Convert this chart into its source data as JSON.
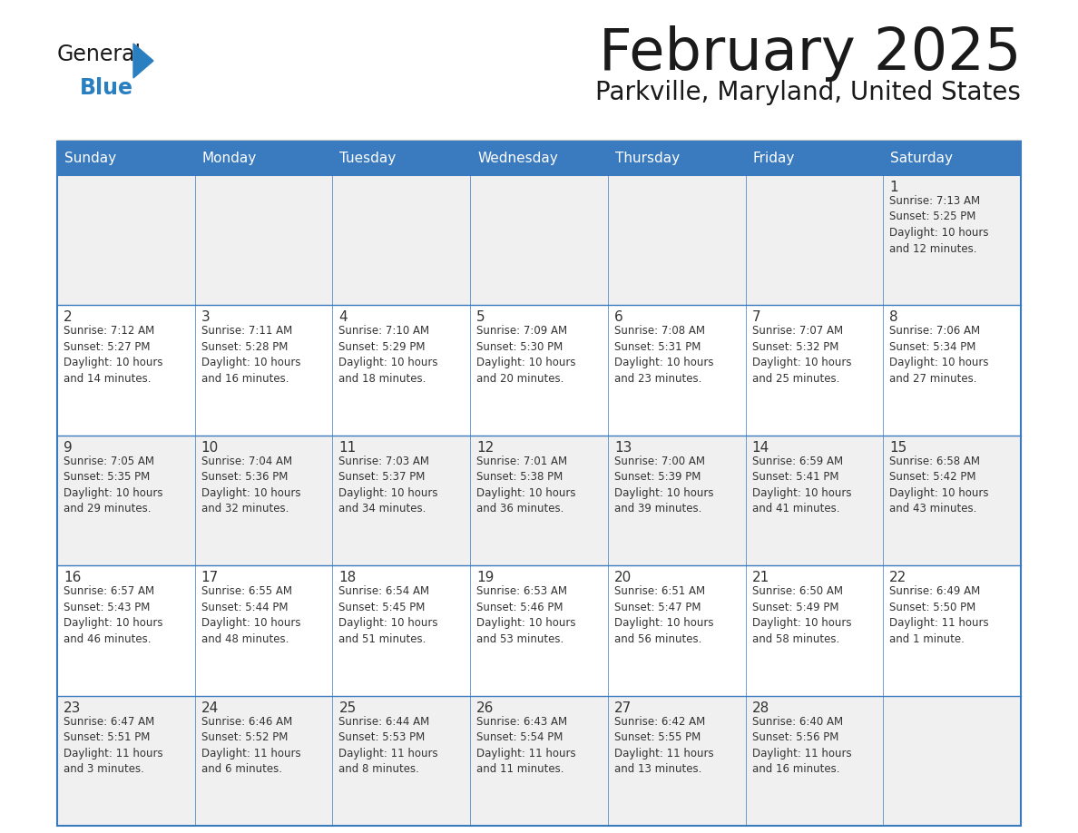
{
  "title": "February 2025",
  "subtitle": "Parkville, Maryland, United States",
  "header_bg_color": "#3a7abf",
  "header_text_color": "#ffffff",
  "cell_bg_color": "#ffffff",
  "cell_alt_bg_color": "#f0f0f0",
  "border_color": "#3a7abf",
  "title_color": "#1a1a1a",
  "subtitle_color": "#1a1a1a",
  "day_text_color": "#333333",
  "day_headers": [
    "Sunday",
    "Monday",
    "Tuesday",
    "Wednesday",
    "Thursday",
    "Friday",
    "Saturday"
  ],
  "weeks": [
    [
      {
        "day": "",
        "text": ""
      },
      {
        "day": "",
        "text": ""
      },
      {
        "day": "",
        "text": ""
      },
      {
        "day": "",
        "text": ""
      },
      {
        "day": "",
        "text": ""
      },
      {
        "day": "",
        "text": ""
      },
      {
        "day": "1",
        "text": "Sunrise: 7:13 AM\nSunset: 5:25 PM\nDaylight: 10 hours\nand 12 minutes."
      }
    ],
    [
      {
        "day": "2",
        "text": "Sunrise: 7:12 AM\nSunset: 5:27 PM\nDaylight: 10 hours\nand 14 minutes."
      },
      {
        "day": "3",
        "text": "Sunrise: 7:11 AM\nSunset: 5:28 PM\nDaylight: 10 hours\nand 16 minutes."
      },
      {
        "day": "4",
        "text": "Sunrise: 7:10 AM\nSunset: 5:29 PM\nDaylight: 10 hours\nand 18 minutes."
      },
      {
        "day": "5",
        "text": "Sunrise: 7:09 AM\nSunset: 5:30 PM\nDaylight: 10 hours\nand 20 minutes."
      },
      {
        "day": "6",
        "text": "Sunrise: 7:08 AM\nSunset: 5:31 PM\nDaylight: 10 hours\nand 23 minutes."
      },
      {
        "day": "7",
        "text": "Sunrise: 7:07 AM\nSunset: 5:32 PM\nDaylight: 10 hours\nand 25 minutes."
      },
      {
        "day": "8",
        "text": "Sunrise: 7:06 AM\nSunset: 5:34 PM\nDaylight: 10 hours\nand 27 minutes."
      }
    ],
    [
      {
        "day": "9",
        "text": "Sunrise: 7:05 AM\nSunset: 5:35 PM\nDaylight: 10 hours\nand 29 minutes."
      },
      {
        "day": "10",
        "text": "Sunrise: 7:04 AM\nSunset: 5:36 PM\nDaylight: 10 hours\nand 32 minutes."
      },
      {
        "day": "11",
        "text": "Sunrise: 7:03 AM\nSunset: 5:37 PM\nDaylight: 10 hours\nand 34 minutes."
      },
      {
        "day": "12",
        "text": "Sunrise: 7:01 AM\nSunset: 5:38 PM\nDaylight: 10 hours\nand 36 minutes."
      },
      {
        "day": "13",
        "text": "Sunrise: 7:00 AM\nSunset: 5:39 PM\nDaylight: 10 hours\nand 39 minutes."
      },
      {
        "day": "14",
        "text": "Sunrise: 6:59 AM\nSunset: 5:41 PM\nDaylight: 10 hours\nand 41 minutes."
      },
      {
        "day": "15",
        "text": "Sunrise: 6:58 AM\nSunset: 5:42 PM\nDaylight: 10 hours\nand 43 minutes."
      }
    ],
    [
      {
        "day": "16",
        "text": "Sunrise: 6:57 AM\nSunset: 5:43 PM\nDaylight: 10 hours\nand 46 minutes."
      },
      {
        "day": "17",
        "text": "Sunrise: 6:55 AM\nSunset: 5:44 PM\nDaylight: 10 hours\nand 48 minutes."
      },
      {
        "day": "18",
        "text": "Sunrise: 6:54 AM\nSunset: 5:45 PM\nDaylight: 10 hours\nand 51 minutes."
      },
      {
        "day": "19",
        "text": "Sunrise: 6:53 AM\nSunset: 5:46 PM\nDaylight: 10 hours\nand 53 minutes."
      },
      {
        "day": "20",
        "text": "Sunrise: 6:51 AM\nSunset: 5:47 PM\nDaylight: 10 hours\nand 56 minutes."
      },
      {
        "day": "21",
        "text": "Sunrise: 6:50 AM\nSunset: 5:49 PM\nDaylight: 10 hours\nand 58 minutes."
      },
      {
        "day": "22",
        "text": "Sunrise: 6:49 AM\nSunset: 5:50 PM\nDaylight: 11 hours\nand 1 minute."
      }
    ],
    [
      {
        "day": "23",
        "text": "Sunrise: 6:47 AM\nSunset: 5:51 PM\nDaylight: 11 hours\nand 3 minutes."
      },
      {
        "day": "24",
        "text": "Sunrise: 6:46 AM\nSunset: 5:52 PM\nDaylight: 11 hours\nand 6 minutes."
      },
      {
        "day": "25",
        "text": "Sunrise: 6:44 AM\nSunset: 5:53 PM\nDaylight: 11 hours\nand 8 minutes."
      },
      {
        "day": "26",
        "text": "Sunrise: 6:43 AM\nSunset: 5:54 PM\nDaylight: 11 hours\nand 11 minutes."
      },
      {
        "day": "27",
        "text": "Sunrise: 6:42 AM\nSunset: 5:55 PM\nDaylight: 11 hours\nand 13 minutes."
      },
      {
        "day": "28",
        "text": "Sunrise: 6:40 AM\nSunset: 5:56 PM\nDaylight: 11 hours\nand 16 minutes."
      },
      {
        "day": "",
        "text": ""
      }
    ]
  ],
  "logo_general_color": "#1a1a1a",
  "logo_blue_color": "#2a7fc1",
  "week_bg_colors": [
    "#f0f0f0",
    "#ffffff",
    "#f0f0f0",
    "#ffffff",
    "#f0f0f0"
  ]
}
